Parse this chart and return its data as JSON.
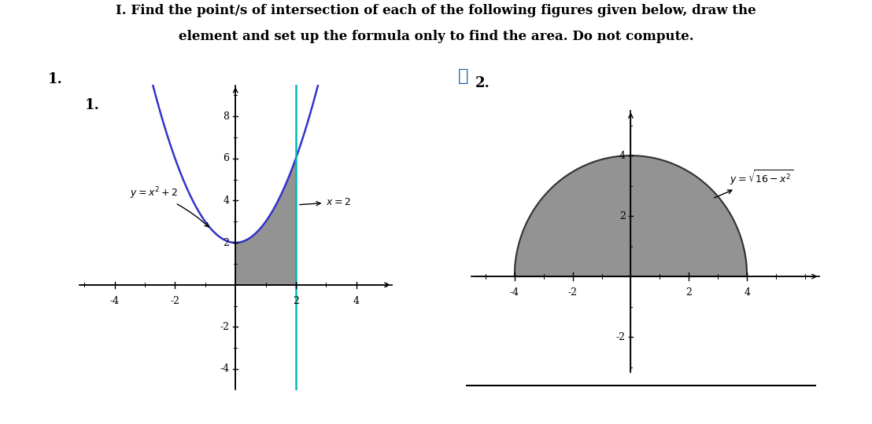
{
  "title_line1": "I. Find the point/s of intersection of each of the following figures given below, draw the",
  "title_line2": "element and set up the formula only to find the area. Do not compute.",
  "title_fontsize": 12,
  "title_fontweight": "bold",
  "plot1_label": "1.",
  "plot1_eq_label": "$y = x^2+2$",
  "plot1_vline_label": "$x = 2$",
  "plot1_xlim": [
    -5.2,
    5.2
  ],
  "plot1_ylim": [
    -5,
    9.5
  ],
  "plot1_xticks": [
    -4,
    -2,
    2,
    4
  ],
  "plot1_yticks": [
    -4,
    -2,
    2,
    4,
    6,
    8
  ],
  "plot1_curve_color": "#3333cc",
  "plot1_vline_color": "#00bbbb",
  "plot1_shade_color": "#808080",
  "plot1_shade_alpha": 0.85,
  "plot2_label": "2.",
  "plot2_eq_label": "$y = \\sqrt{16 - x^2}$",
  "plot2_xlim": [
    -5.5,
    6.5
  ],
  "plot2_ylim": [
    -3.2,
    5.5
  ],
  "plot2_xticks": [
    -4,
    -2,
    2,
    4
  ],
  "plot2_yticks": [
    -2,
    2,
    4
  ],
  "plot2_curve_color": "#333333",
  "plot2_shade_color": "#808080",
  "plot2_shade_alpha": 0.85,
  "checkmark_color": "#1a5fa8",
  "background_color": "#ffffff",
  "axis_color": "#000000"
}
